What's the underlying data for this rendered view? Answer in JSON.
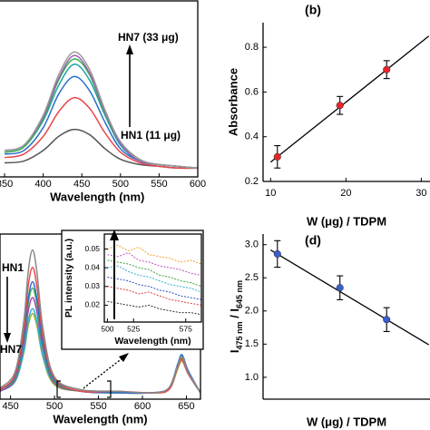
{
  "chart_data": [
    {
      "type": "line",
      "xlabel": "Wavelength (nm)",
      "x": [
        350,
        375,
        400,
        420,
        440,
        460,
        480,
        500,
        525,
        550,
        575,
        600
      ],
      "series": [
        {
          "color": "#555555",
          "values": [
            0.08,
            0.09,
            0.15,
            0.23,
            0.27,
            0.24,
            0.16,
            0.1,
            0.07,
            0.06,
            0.05,
            0.05
          ]
        },
        {
          "color": "#e8474a",
          "values": [
            0.11,
            0.13,
            0.23,
            0.37,
            0.45,
            0.39,
            0.25,
            0.14,
            0.08,
            0.06,
            0.05,
            0.05
          ]
        },
        {
          "color": "#2a6fc9",
          "values": [
            0.13,
            0.15,
            0.28,
            0.47,
            0.57,
            0.49,
            0.31,
            0.16,
            0.09,
            0.07,
            0.06,
            0.05
          ]
        },
        {
          "color": "#1fa3a3",
          "values": [
            0.14,
            0.17,
            0.32,
            0.52,
            0.64,
            0.55,
            0.35,
            0.18,
            0.09,
            0.07,
            0.06,
            0.05
          ]
        },
        {
          "color": "#3cb04a",
          "values": [
            0.14,
            0.17,
            0.33,
            0.55,
            0.67,
            0.58,
            0.36,
            0.19,
            0.09,
            0.07,
            0.06,
            0.05
          ]
        },
        {
          "color": "#9a5fb5",
          "values": [
            0.15,
            0.18,
            0.34,
            0.56,
            0.69,
            0.59,
            0.37,
            0.19,
            0.09,
            0.07,
            0.06,
            0.05
          ]
        },
        {
          "color": "#9a9a9a",
          "values": [
            0.15,
            0.18,
            0.35,
            0.58,
            0.71,
            0.61,
            0.38,
            0.2,
            0.1,
            0.07,
            0.06,
            0.05
          ]
        }
      ],
      "xlim": [
        340,
        600
      ],
      "xticks": [
        350,
        400,
        450,
        500,
        550,
        600
      ],
      "ylim": [
        0,
        1
      ],
      "annotations": [
        "HN7 (33 μg)",
        "HN1 (11 μg)"
      ]
    },
    {
      "type": "scatter",
      "panel_label": "(b)",
      "xlabel": "W (μg) / TDPM",
      "ylabel": "Absorbance",
      "x": [
        10.9,
        19.2,
        25.4
      ],
      "values": [
        0.31,
        0.54,
        0.7
      ],
      "errors": [
        0.05,
        0.04,
        0.04
      ],
      "color": "#e8262a",
      "fit": {
        "x": [
          10,
          31
        ],
        "y": [
          0.286,
          0.85
        ]
      },
      "xlim": [
        9,
        32
      ],
      "xticks": [
        10,
        20,
        30
      ],
      "ylim": [
        0.2,
        0.91
      ],
      "yticks": [
        0.2,
        0.4,
        0.6,
        0.8
      ]
    },
    {
      "type": "line",
      "xlabel": "Wavelength (nm)",
      "x": [
        438,
        455,
        465,
        470,
        475,
        480,
        487,
        500,
        530,
        570,
        610,
        630,
        640,
        645,
        652,
        666
      ],
      "series": [
        {
          "color": "#a0b030",
          "values": [
            0.05,
            0.11,
            0.29,
            0.46,
            0.54,
            0.46,
            0.26,
            0.09,
            0.05,
            0.04,
            0.04,
            0.06,
            0.19,
            0.24,
            0.16,
            0.04
          ]
        },
        {
          "color": "#20b8d0",
          "values": [
            0.05,
            0.11,
            0.3,
            0.49,
            0.57,
            0.49,
            0.27,
            0.1,
            0.05,
            0.04,
            0.04,
            0.06,
            0.2,
            0.25,
            0.16,
            0.04
          ]
        },
        {
          "color": "#b040b0",
          "values": [
            0.05,
            0.12,
            0.34,
            0.55,
            0.64,
            0.55,
            0.31,
            0.1,
            0.05,
            0.04,
            0.04,
            0.07,
            0.21,
            0.27,
            0.17,
            0.04
          ]
        },
        {
          "color": "#3cb04a",
          "values": [
            0.06,
            0.13,
            0.37,
            0.6,
            0.7,
            0.6,
            0.33,
            0.11,
            0.05,
            0.04,
            0.04,
            0.06,
            0.2,
            0.26,
            0.17,
            0.04
          ]
        },
        {
          "color": "#2a6fc9",
          "values": [
            0.06,
            0.14,
            0.39,
            0.63,
            0.74,
            0.63,
            0.35,
            0.12,
            0.05,
            0.04,
            0.04,
            0.07,
            0.22,
            0.28,
            0.18,
            0.04
          ]
        },
        {
          "color": "#e8474a",
          "values": [
            0.06,
            0.15,
            0.43,
            0.71,
            0.83,
            0.71,
            0.39,
            0.13,
            0.05,
            0.05,
            0.04,
            0.06,
            0.2,
            0.25,
            0.16,
            0.04
          ]
        },
        {
          "color": "#888888",
          "values": [
            0.07,
            0.17,
            0.49,
            0.8,
            0.94,
            0.8,
            0.44,
            0.14,
            0.06,
            0.05,
            0.04,
            0.07,
            0.21,
            0.27,
            0.17,
            0.04
          ]
        }
      ],
      "xlim": [
        438,
        666
      ],
      "xticks": [
        450,
        500,
        550,
        600,
        650
      ],
      "ylim": [
        0,
        1.04
      ],
      "annotations": [
        "HN1",
        "HN7"
      ]
    },
    {
      "type": "line",
      "xlabel": "Wavelength (nm)",
      "ylabel": "PL intensity (a.u.)",
      "x": [
        500,
        510,
        520,
        530,
        540,
        550,
        560,
        570,
        580,
        590
      ],
      "series": [
        {
          "color": "#f0a020",
          "values": [
            0.05,
            0.052,
            0.049,
            0.051,
            0.047,
            0.046,
            0.045,
            0.043,
            0.044,
            0.042
          ]
        },
        {
          "color": "#c050c0",
          "values": [
            0.047,
            0.046,
            0.048,
            0.044,
            0.043,
            0.041,
            0.04,
            0.039,
            0.037,
            0.036
          ]
        },
        {
          "color": "#40a040",
          "values": [
            0.044,
            0.043,
            0.042,
            0.04,
            0.039,
            0.036,
            0.035,
            0.033,
            0.032,
            0.03
          ]
        },
        {
          "color": "#30b0d0",
          "values": [
            0.04,
            0.041,
            0.038,
            0.036,
            0.035,
            0.033,
            0.031,
            0.03,
            0.029,
            0.027
          ]
        },
        {
          "color": "#3050c0",
          "values": [
            0.035,
            0.034,
            0.033,
            0.031,
            0.03,
            0.028,
            0.027,
            0.025,
            0.024,
            0.023
          ]
        },
        {
          "color": "#e04040",
          "values": [
            0.03,
            0.029,
            0.028,
            0.026,
            0.027,
            0.025,
            0.023,
            0.022,
            0.021,
            0.02
          ]
        },
        {
          "color": "#333333",
          "values": [
            0.022,
            0.021,
            0.02,
            0.019,
            0.02,
            0.018,
            0.017,
            0.016,
            0.016,
            0.015
          ]
        }
      ],
      "xlim": [
        497,
        590
      ],
      "xticks": [
        500,
        525,
        575
      ],
      "ylim": [
        0.011,
        0.058
      ],
      "yticks": [
        0.02,
        0.03,
        0.04,
        0.05
      ]
    },
    {
      "type": "scatter",
      "panel_label": "(d)",
      "xlabel": "W (μg) / TDPM",
      "ylabel": [
        "I",
        "475 nm",
        " / I",
        "645 nm"
      ],
      "x": [
        10.9,
        19.2,
        25.4
      ],
      "values": [
        2.86,
        2.35,
        1.87
      ],
      "errors": [
        0.2,
        0.18,
        0.18
      ],
      "color": "#3a5fcd",
      "fit": {
        "x": [
          10,
          31
        ],
        "y": [
          2.92,
          1.49
        ]
      },
      "xlim": [
        9,
        32
      ],
      "ylim": [
        0.67,
        3.16
      ],
      "yticks": [
        {
          "value": 1,
          "label": "1.0"
        },
        1.5,
        {
          "value": 2,
          "label": "2.0"
        },
        2.5,
        {
          "value": 3,
          "label": "3.0"
        }
      ]
    }
  ]
}
